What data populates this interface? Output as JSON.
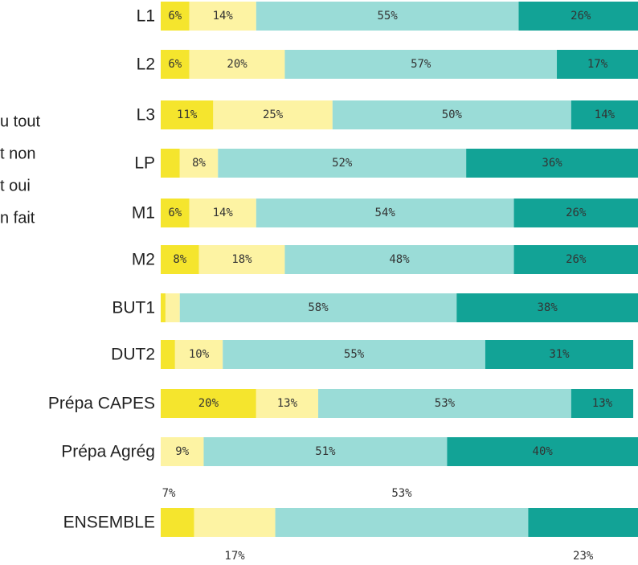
{
  "chart_data": {
    "type": "stacked-bar-horizontal",
    "categories": [
      "L1",
      "L2",
      "L3",
      "LP",
      "M1",
      "M2",
      "BUT1",
      "DUT2",
      "Prépa CAPES",
      "Prépa Agrég",
      "ENSEMBLE"
    ],
    "xlim": [
      0,
      100
    ],
    "series": [
      {
        "name": "u tout",
        "color": "#f5e52d",
        "values": [
          6,
          6,
          11,
          4,
          6,
          8,
          1,
          3,
          20,
          0,
          7
        ],
        "value_labels": [
          "6%",
          "6%",
          "11%",
          null,
          "6%",
          "8%",
          null,
          null,
          "20%",
          null,
          "7%"
        ]
      },
      {
        "name": "t non",
        "color": "#fdf3a3",
        "values": [
          14,
          20,
          25,
          8,
          14,
          18,
          3,
          10,
          13,
          9,
          17
        ],
        "value_labels": [
          "14%",
          "20%",
          "25%",
          "8%",
          "14%",
          "18%",
          null,
          "10%",
          "13%",
          "9%",
          "17%"
        ]
      },
      {
        "name": "t oui",
        "color": "#9adcd7",
        "values": [
          55,
          57,
          50,
          52,
          54,
          48,
          58,
          55,
          53,
          51,
          53
        ],
        "value_labels": [
          "55%",
          "57%",
          "50%",
          "52%",
          "54%",
          "48%",
          "58%",
          "55%",
          "53%",
          "51%",
          "53%"
        ]
      },
      {
        "name": "n fait",
        "color": "#12a396",
        "values": [
          26,
          17,
          14,
          36,
          26,
          26,
          38,
          31,
          13,
          40,
          23
        ],
        "value_labels": [
          "26%",
          "17%",
          "14%",
          "36%",
          "26%",
          "26%",
          "38%",
          "31%",
          "13%",
          "40%",
          "23%"
        ]
      }
    ]
  }
}
